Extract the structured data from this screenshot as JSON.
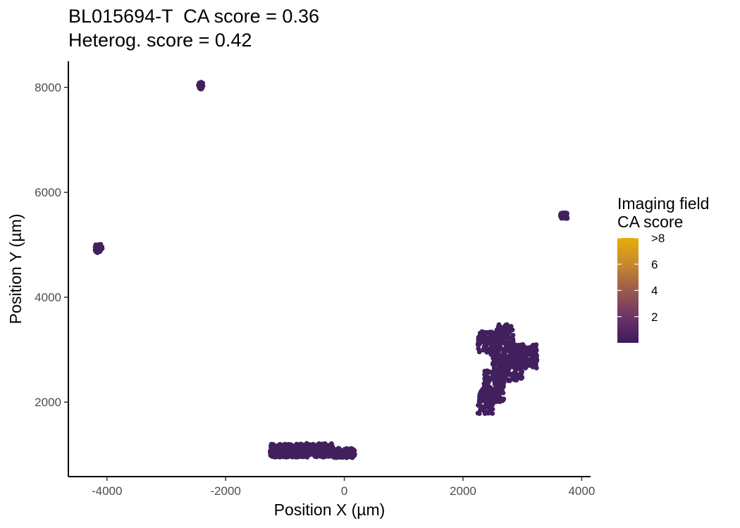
{
  "chart_data": {
    "type": "scatter",
    "title_line1": "BL015694-T  CA score = 0.36",
    "title_line2": "Heterog. score = 0.42",
    "xlabel": "Position X (µm)",
    "ylabel": "Position Y (µm)",
    "xlim": [
      -4650,
      4150
    ],
    "ylim": [
      580,
      8500
    ],
    "x_ticks": [
      -4000,
      -2000,
      0,
      2000,
      4000
    ],
    "y_ticks": [
      2000,
      4000,
      6000,
      8000
    ],
    "grid": false,
    "legend": {
      "title_line1": "Imaging field",
      "title_line2": "CA score",
      "ticks": [
        {
          "value": 2,
          "label": "2"
        },
        {
          "value": 4,
          "label": "4"
        },
        {
          "value": 6,
          "label": "6"
        },
        {
          "value": 8,
          "label": ">8"
        }
      ],
      "range": [
        0,
        8
      ],
      "placement": "right",
      "colors": [
        "#3d1a5c",
        "#6b3566",
        "#9c5a4e",
        "#c8892c",
        "#e6ad0a"
      ]
    },
    "point_color": "#42205e",
    "series": [
      {
        "clusters": [
          {
            "x": [
              -2380,
              -2460
            ],
            "y": [
              7970,
              8100
            ],
            "n": 40
          },
          {
            "x": [
              -4200,
              -4080
            ],
            "y": [
              4850,
              5010
            ],
            "n": 45
          },
          {
            "x": [
              3640,
              3760
            ],
            "y": [
              5500,
              5610
            ],
            "n": 60
          },
          {
            "x": [
              -1250,
              -750
            ],
            "y": [
              950,
              1200
            ],
            "n": 220
          },
          {
            "x": [
              -750,
              -200
            ],
            "y": [
              950,
              1220
            ],
            "n": 200
          },
          {
            "x": [
              -200,
              180
            ],
            "y": [
              940,
              1120
            ],
            "n": 110
          },
          {
            "x": [
              2250,
              2500
            ],
            "y": [
              1780,
              2300
            ],
            "n": 90
          },
          {
            "x": [
              2350,
              2700
            ],
            "y": [
              2000,
              2600
            ],
            "n": 150
          },
          {
            "x": [
              2500,
              3000
            ],
            "y": [
              2400,
              3100
            ],
            "n": 220
          },
          {
            "x": [
              2750,
              3250
            ],
            "y": [
              2650,
              3100
            ],
            "n": 160
          },
          {
            "x": [
              2250,
              2600
            ],
            "y": [
              2900,
              3350
            ],
            "n": 110
          },
          {
            "x": [
              2550,
              2850
            ],
            "y": [
              3100,
              3480
            ],
            "n": 80
          }
        ]
      }
    ]
  }
}
